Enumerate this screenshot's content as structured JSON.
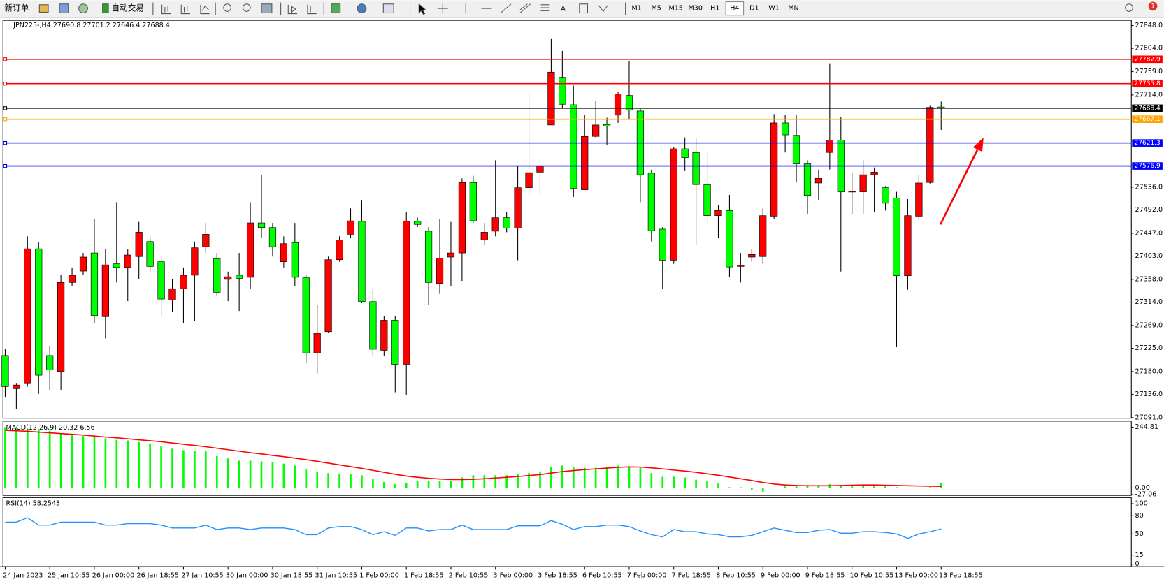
{
  "toolbar": {
    "buttons": [
      "新订单",
      "自动交易"
    ],
    "timeframes": [
      "M1",
      "M5",
      "M15",
      "M30",
      "H1",
      "H4",
      "D1",
      "W1",
      "MN"
    ],
    "active": 5,
    "notifications": 1
  },
  "chart_data": [
    {
      "type": "candlestick",
      "title": "JPN225-,H4  27690.8 27701.2 27646.4 27688.4",
      "up_color": "#ff0000",
      "down_color": "#00ff00",
      "categories": [
        "24 Jan 2023",
        null,
        null,
        null,
        "25 Jan 10:55",
        null,
        null,
        null,
        "26 Jan 00:00",
        null,
        null,
        null,
        "26 Jan 18:55",
        null,
        null,
        null,
        "27 Jan 10:55",
        null,
        null,
        null,
        "30 Jan 00:00",
        null,
        null,
        null,
        "30 Jan 18:55",
        null,
        null,
        null,
        "31 Jan 10:55",
        null,
        null,
        null,
        "1 Feb 00:00",
        null,
        null,
        null,
        "1 Feb 18:55",
        null,
        null,
        null,
        "2 Feb 10:55",
        null,
        null,
        null,
        "3 Feb 00:00",
        null,
        null,
        null,
        "3 Feb 18:55",
        null,
        null,
        null,
        "6 Feb 10:55",
        null,
        null,
        null,
        "7 Feb 00:00",
        null,
        null,
        null,
        "7 Feb 18:55",
        null,
        null,
        null,
        "8 Feb 10:55",
        null,
        null,
        null,
        "9 Feb 00:00",
        null,
        null,
        null,
        "9 Feb 18:55",
        null,
        null,
        null,
        "10 Feb 10:55",
        null,
        null,
        null,
        "13 Feb 00:00",
        null,
        null,
        null,
        "13 Feb 18:55"
      ],
      "open": [
        27211,
        27147,
        27158,
        27417,
        27211,
        27180,
        27352,
        27374,
        27409,
        27286,
        27388,
        27381,
        27402,
        27431,
        27392,
        27318,
        27340,
        27366,
        27421,
        27398,
        27358,
        27366,
        27362,
        27467,
        27458,
        27392,
        27429,
        27361,
        27216,
        27257,
        27396,
        27445,
        27470,
        27315,
        27221,
        27279,
        27194,
        27470,
        27451,
        27350,
        27401,
        27409,
        27545,
        27434,
        27451,
        27477,
        27457,
        27535,
        27565,
        27656,
        27748,
        27695,
        27531,
        27634,
        27657,
        27675,
        27713,
        27683,
        27563,
        27455,
        27395,
        27610,
        27603,
        27541,
        27481,
        27491,
        27383,
        27401,
        27402,
        27480,
        27660,
        27636,
        27581,
        27544,
        27603,
        27627,
        27527,
        27527,
        27560,
        27535,
        27515,
        27365,
        27480,
        27545,
        27690.8
      ],
      "high": [
        27223,
        27158,
        27441,
        27430,
        27230,
        27366,
        27381,
        27409,
        27474,
        27416,
        27507,
        27416,
        27469,
        27441,
        27402,
        27359,
        27381,
        27431,
        27467,
        27409,
        27373,
        27409,
        27507,
        27560,
        27467,
        27441,
        27467,
        27366,
        27309,
        27402,
        27441,
        27495,
        27510,
        27338,
        27287,
        27287,
        27488,
        27477,
        27459,
        27474,
        27469,
        27553,
        27558,
        27467,
        27588,
        27488,
        27577,
        27718,
        27588,
        27822,
        27799,
        27732,
        27675,
        27703,
        27670,
        27720,
        27779,
        27689,
        27570,
        27459,
        27613,
        27632,
        27632,
        27606,
        27502,
        27521,
        27409,
        27416,
        27495,
        27677,
        27675,
        27675,
        27588,
        27570,
        27775,
        27672,
        27564,
        27588,
        27574,
        27538,
        27527,
        27513,
        27560,
        27693,
        27701.2
      ],
      "low": [
        27130,
        27108,
        27151,
        27137,
        27144,
        27144,
        27345,
        27366,
        27273,
        27244,
        27352,
        27316,
        27359,
        27373,
        27287,
        27295,
        27273,
        27277,
        27409,
        27326,
        27316,
        27297,
        27340,
        27438,
        27402,
        27381,
        27345,
        27197,
        27176,
        27254,
        27392,
        27438,
        27312,
        27211,
        27211,
        27140,
        27134,
        27459,
        27309,
        27330,
        27345,
        27355,
        27467,
        27424,
        27441,
        27449,
        27395,
        27521,
        27521,
        27656,
        27689,
        27517,
        27531,
        27632,
        27617,
        27660,
        27667,
        27507,
        27431,
        27340,
        27388,
        27567,
        27424,
        27467,
        27438,
        27363,
        27352,
        27392,
        27388,
        27474,
        27603,
        27545,
        27484,
        27510,
        27570,
        27373,
        27484,
        27484,
        27488,
        27491,
        27227,
        27338,
        27474,
        27543,
        27646.4
      ],
      "close": [
        27151,
        27154,
        27417,
        27173,
        27183,
        27352,
        27366,
        27401,
        27288,
        27386,
        27381,
        27405,
        27449,
        27383,
        27320,
        27340,
        27366,
        27419,
        27445,
        27333,
        27363,
        27360,
        27467,
        27458,
        27421,
        27427,
        27362,
        27216,
        27254,
        27396,
        27434,
        27471,
        27315,
        27223,
        27279,
        27194,
        27470,
        27464,
        27352,
        27399,
        27409,
        27545,
        27471,
        27449,
        27477,
        27457,
        27535,
        27564,
        27577,
        27758,
        27696,
        27534,
        27634,
        27656,
        27654,
        27716,
        27685,
        27560,
        27452,
        27395,
        27610,
        27593,
        27541,
        27481,
        27491,
        27382,
        27385,
        27406,
        27481,
        27660,
        27637,
        27581,
        27520,
        27553,
        27627,
        27527,
        27528,
        27560,
        27565,
        27505,
        27365,
        27481,
        27544,
        27690,
        27688.4
      ],
      "ylim": [
        27090,
        27858
      ],
      "yticks": [
        {
          "value": 27848,
          "label": "27848.0"
        },
        {
          "value": 27804,
          "label": "27804.0"
        },
        {
          "value": 27759,
          "label": "27759.0"
        },
        {
          "value": 27714,
          "label": "27714.0"
        },
        {
          "value": 27536,
          "label": "27536.0"
        },
        {
          "value": 27492,
          "label": "27492.0"
        },
        {
          "value": 27447,
          "label": "27447.0"
        },
        {
          "value": 27403,
          "label": "27403.0"
        },
        {
          "value": 27358,
          "label": "27358.0"
        },
        {
          "value": 27314,
          "label": "27314.0"
        },
        {
          "value": 27269,
          "label": "27269.0"
        },
        {
          "value": 27225,
          "label": "27225.0"
        },
        {
          "value": 27180,
          "label": "27180.0"
        },
        {
          "value": 27136,
          "label": "27136.0"
        },
        {
          "value": 27091,
          "label": "27091.0"
        }
      ],
      "hlines": [
        {
          "value": 27782.9,
          "color": "#ff0000"
        },
        {
          "value": 27735.8,
          "color": "#ff0000"
        },
        {
          "value": 27688.4,
          "color": "#000000"
        },
        {
          "value": 27667.1,
          "color": "#ffa500"
        },
        {
          "value": 27621.3,
          "color": "#0000ff"
        },
        {
          "value": 27576.9,
          "color": "#0000ff"
        }
      ]
    },
    {
      "type": "bar",
      "title": "MACD(12,26,9) 20.32 6.56",
      "color": "#00ff00",
      "signal_color": "#ff0000",
      "values": [
        245,
        245,
        239,
        236,
        230,
        221,
        218,
        209,
        206,
        200,
        194,
        191,
        185,
        179,
        167,
        158,
        152,
        149,
        149,
        128,
        119,
        110,
        110,
        107,
        104,
        98,
        90,
        75,
        66,
        60,
        57,
        57,
        51,
        36,
        24,
        15,
        21,
        30,
        30,
        27,
        27,
        42,
        51,
        51,
        51,
        51,
        57,
        60,
        63,
        84,
        90,
        84,
        81,
        81,
        84,
        90,
        87,
        81,
        60,
        45,
        45,
        42,
        33,
        27,
        18,
        3,
        3,
        -9,
        -15,
        0,
        6,
        12,
        12,
        12,
        15,
        12,
        9,
        12,
        9,
        9,
        3,
        0,
        0,
        3,
        20.32
      ],
      "signal": [
        232,
        230,
        228,
        225,
        222,
        219,
        216,
        213,
        209,
        205,
        202,
        198,
        194,
        190,
        186,
        181,
        176,
        171,
        166,
        160,
        154,
        148,
        142,
        137,
        131,
        126,
        120,
        114,
        107,
        100,
        93,
        86,
        79,
        71,
        63,
        55,
        48,
        43,
        39,
        36,
        34,
        34,
        35,
        37,
        40,
        43,
        46,
        50,
        54,
        60,
        66,
        70,
        74,
        77,
        80,
        83,
        85,
        84,
        81,
        77,
        72,
        68,
        63,
        57,
        51,
        44,
        37,
        30,
        22,
        16,
        12,
        10,
        9,
        9,
        9,
        10,
        11,
        12,
        12,
        11,
        10,
        9,
        8,
        7,
        6.56
      ],
      "ylim": [
        -30,
        269
      ],
      "yticks": [
        244.81,
        {
          "value": 0,
          "label": "0.00"
        },
        {
          "value": -27.06,
          "label": "-27.06"
        }
      ]
    },
    {
      "type": "line",
      "title": "RSI(14) 58.2543",
      "color": "#1e90ff",
      "level_lines": true,
      "values": [
        69.5,
        69.5,
        76.8,
        64.6,
        64.6,
        69.5,
        69.5,
        69.5,
        69.5,
        64.6,
        64.6,
        67.1,
        67.1,
        67.1,
        64.6,
        59.8,
        59.8,
        59.8,
        64.6,
        57.3,
        59.8,
        59.8,
        57.3,
        59.8,
        59.8,
        59.8,
        57.3,
        48.8,
        48.8,
        59.8,
        62.2,
        62.2,
        57.3,
        48.8,
        53.7,
        47.6,
        59.8,
        59.8,
        54.9,
        57.3,
        57.3,
        64.6,
        57.3,
        57.3,
        57.3,
        57.3,
        63.4,
        63.4,
        63.4,
        72,
        65.9,
        57.3,
        62.2,
        62.2,
        64.6,
        64.6,
        62.2,
        54.9,
        48.8,
        45.1,
        57.3,
        53.7,
        53.7,
        50,
        48.8,
        45.1,
        45.1,
        47.6,
        53.7,
        59.8,
        56.1,
        52.4,
        52.4,
        56.1,
        57.3,
        51.2,
        51.2,
        53.7,
        53.7,
        52.4,
        50,
        42.7,
        50,
        53.7,
        58.2543
      ],
      "ylim": [
        -4,
        110
      ],
      "yticks": [
        100,
        80,
        50,
        15,
        0
      ]
    }
  ]
}
